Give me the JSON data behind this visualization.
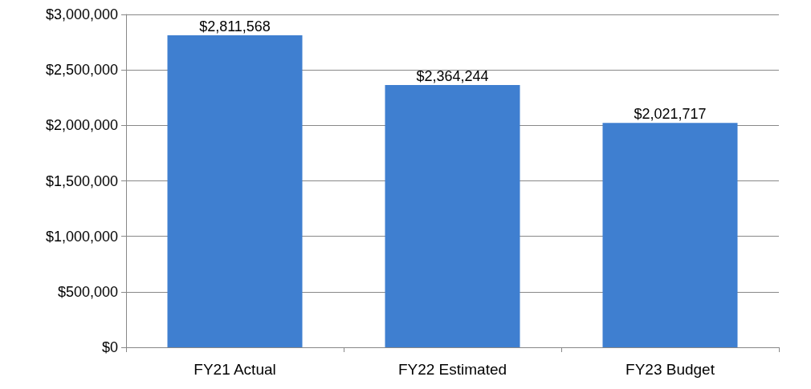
{
  "chart_data": {
    "type": "bar",
    "categories": [
      "FY21 Actual",
      "FY22 Estimated",
      "FY23 Budget"
    ],
    "values": [
      2811568,
      2364244,
      2021717
    ],
    "value_labels": [
      "$2,811,568",
      "$2,364,244",
      "$2,021,717"
    ],
    "color": "#3f7fd0",
    "ylim": [
      0,
      3000000
    ],
    "yticks": [
      {
        "value": 0,
        "label": "$0"
      },
      {
        "value": 500000,
        "label": "$500,000"
      },
      {
        "value": 1000000,
        "label": "$1,000,000"
      },
      {
        "value": 1500000,
        "label": "$1,500,000"
      },
      {
        "value": 2000000,
        "label": "$2,000,000"
      },
      {
        "value": 2500000,
        "label": "$2,500,000"
      },
      {
        "value": 3000000,
        "label": "$3,000,000"
      }
    ],
    "grid": true
  }
}
